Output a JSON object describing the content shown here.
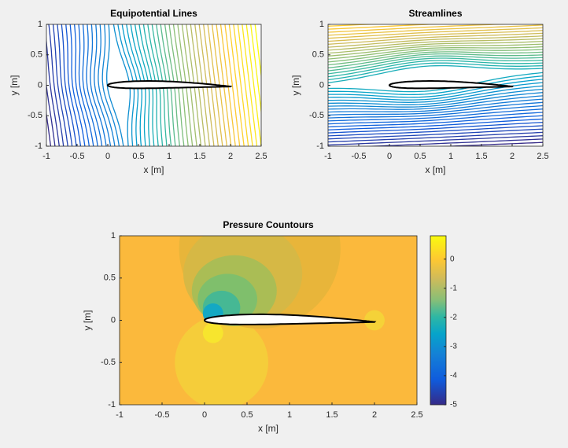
{
  "chart_data": [
    {
      "type": "equipotential",
      "title": "Equipotential Lines",
      "x_label": "x [m]",
      "y_label": "y [m]",
      "xlim": [
        -1,
        2.5
      ],
      "ylim": [
        -1,
        1
      ],
      "xticks": [
        -1,
        -0.5,
        0,
        0.5,
        1,
        1.5,
        2,
        2.5
      ],
      "yticks": [
        -1,
        -0.5,
        0,
        0.5,
        1
      ]
    },
    {
      "type": "streamlines",
      "title": "Streamlines",
      "x_label": "x [m]",
      "y_label": "y [m]",
      "xlim": [
        -1,
        2.5
      ],
      "ylim": [
        -1,
        1
      ],
      "xticks": [
        -1,
        -0.5,
        0,
        0.5,
        1,
        1.5,
        2,
        2.5
      ],
      "yticks": [
        -1,
        -0.5,
        0,
        0.5,
        1
      ]
    },
    {
      "type": "pressure",
      "title": "Pressure Countours",
      "x_label": "x [m]",
      "y_label": "y [m]",
      "xlim": [
        -1,
        2.5
      ],
      "ylim": [
        -1,
        1
      ],
      "xticks": [
        -1,
        -0.5,
        0,
        0.5,
        1,
        1.5,
        2,
        2.5
      ],
      "yticks": [
        -1,
        -0.5,
        0,
        0.5,
        1
      ],
      "colorbar": {
        "lim": [
          -5,
          0.8
        ],
        "ticks": [
          -5,
          -4,
          -3,
          -2,
          -1,
          0
        ]
      }
    }
  ]
}
